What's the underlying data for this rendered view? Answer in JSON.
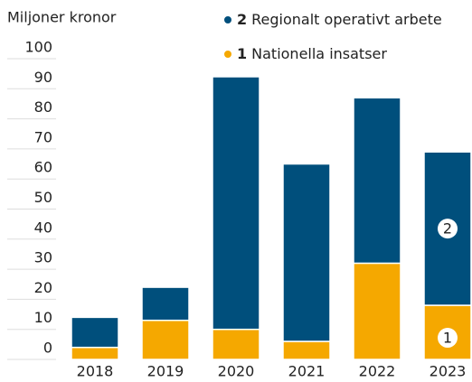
{
  "chart_data": {
    "type": "stacked_bar",
    "y_label": "Miljoner kronor",
    "categories": [
      "2018",
      "2019",
      "2020",
      "2021",
      "2022",
      "2023"
    ],
    "series": [
      {
        "key": "1",
        "name": "Nationella insatser",
        "color": "#f5a800",
        "values": [
          4,
          13,
          10,
          6,
          32,
          18
        ]
      },
      {
        "key": "2",
        "name": "Regionalt operativt arbete",
        "color": "#004f7c",
        "values": [
          10,
          11,
          84,
          59,
          55,
          51
        ]
      }
    ],
    "ylim": [
      0,
      100
    ],
    "yticks": [
      0,
      10,
      20,
      30,
      40,
      50,
      60,
      70,
      80,
      90,
      100
    ],
    "grid": true
  }
}
